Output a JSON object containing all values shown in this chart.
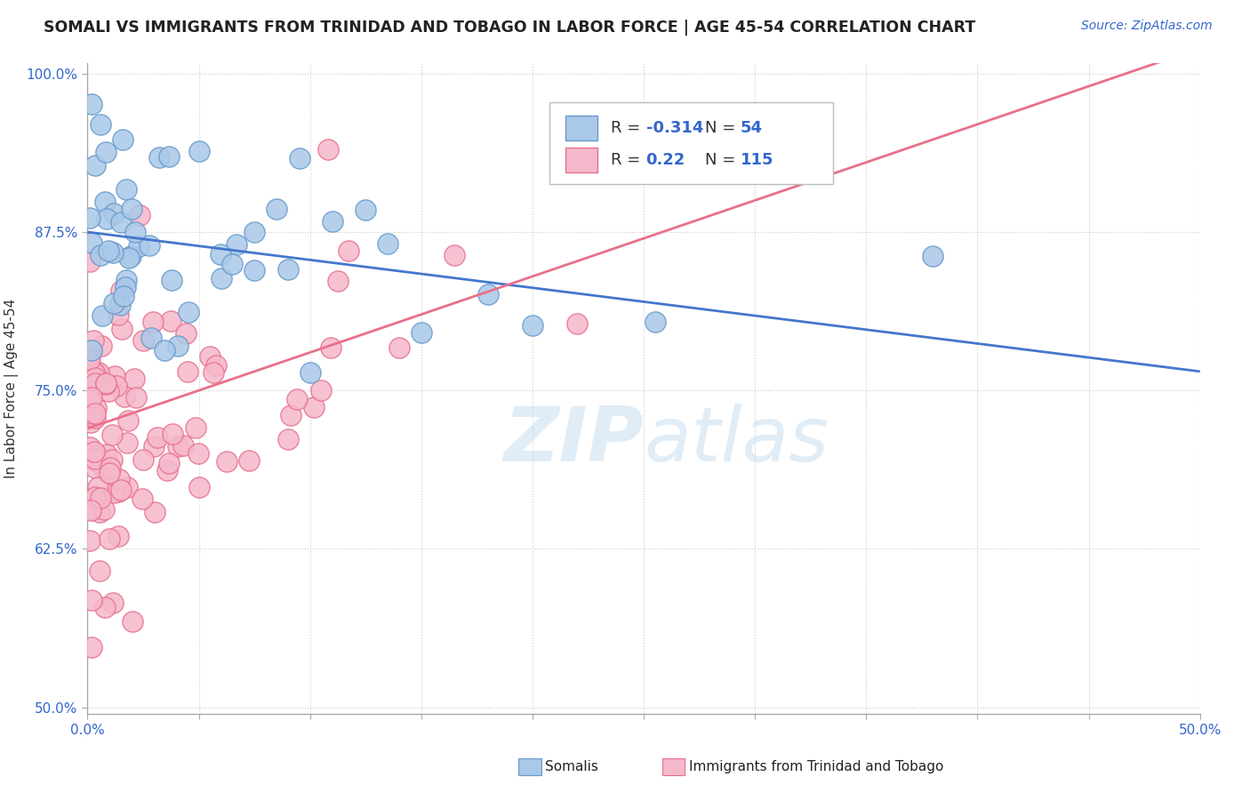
{
  "title": "SOMALI VS IMMIGRANTS FROM TRINIDAD AND TOBAGO IN LABOR FORCE | AGE 45-54 CORRELATION CHART",
  "source": "Source: ZipAtlas.com",
  "ylabel": "In Labor Force | Age 45-54",
  "xlim": [
    0.0,
    0.5
  ],
  "ylim": [
    0.495,
    1.008
  ],
  "xtick_positions": [
    0.0,
    0.05,
    0.1,
    0.15,
    0.2,
    0.25,
    0.3,
    0.35,
    0.4,
    0.45,
    0.5
  ],
  "xtick_labels_shown": {
    "0.0": "0.0%",
    "0.50": "50.0%"
  },
  "yticks": [
    0.5,
    0.625,
    0.75,
    0.875,
    1.0
  ],
  "ytick_labels": [
    "50.0%",
    "62.5%",
    "75.0%",
    "87.5%",
    "100.0%"
  ],
  "somali_color": "#aac8e8",
  "somali_edge_color": "#6699cc",
  "tt_color": "#f5b8cb",
  "tt_edge_color": "#e8708a",
  "somali_line_color": "#4477cc",
  "tt_line_color": "#e8708a",
  "somali_R": -0.314,
  "somali_N": 54,
  "tt_R": 0.22,
  "tt_N": 115,
  "watermark_zip": "ZIP",
  "watermark_atlas": "atlas",
  "background_color": "#ffffff",
  "grid_color": "#cccccc",
  "somali_intercept": 0.875,
  "somali_slope": -0.22,
  "tt_intercept": 0.72,
  "tt_slope": 0.6
}
